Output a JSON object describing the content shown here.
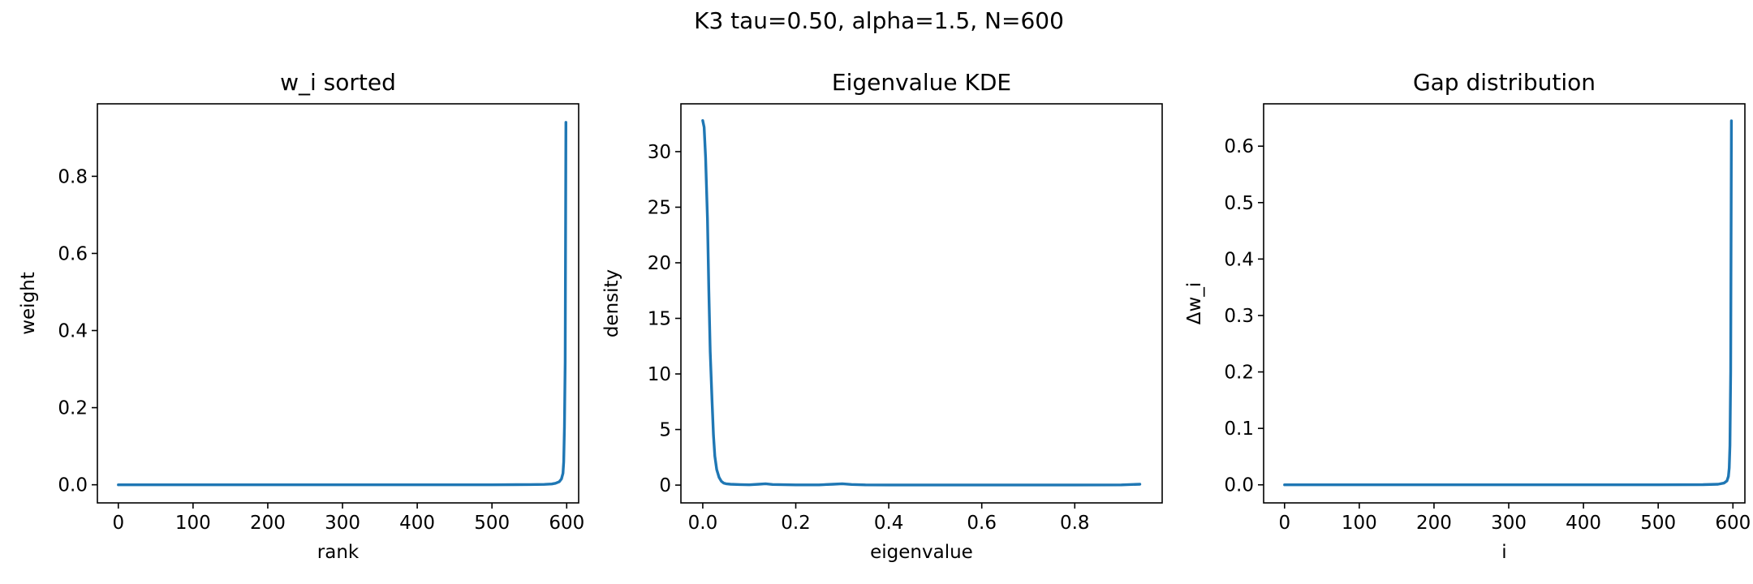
{
  "figure": {
    "title": "K3 tau=0.50, alpha=1.5, N=600"
  },
  "colors": {
    "background": "#ffffff",
    "series": "#1f77b4",
    "axes": "#000000"
  },
  "chart_data": [
    {
      "type": "line",
      "title": "w_i sorted",
      "xlabel": "rank",
      "ylabel": "weight",
      "xlim": [
        -28,
        616
      ],
      "ylim": [
        -0.047,
        0.988
      ],
      "xticks": [
        0,
        100,
        200,
        300,
        400,
        500,
        600
      ],
      "xtick_labels": [
        "0",
        "100",
        "200",
        "300",
        "400",
        "500",
        "600"
      ],
      "yticks": [
        0.0,
        0.2,
        0.4,
        0.6,
        0.8
      ],
      "ytick_labels": [
        "0.0",
        "0.2",
        "0.4",
        "0.6",
        "0.8"
      ],
      "grid": false,
      "series": [
        {
          "x": [
            0,
            100,
            200,
            300,
            400,
            500,
            550,
            570,
            580,
            585,
            590,
            593,
            595,
            596,
            597,
            598,
            599
          ],
          "y": [
            0.0,
            0.0,
            0.0,
            0.0,
            0.0,
            0.0,
            0.0005,
            0.001,
            0.002,
            0.004,
            0.008,
            0.015,
            0.03,
            0.06,
            0.15,
            0.32,
            0.94
          ]
        }
      ]
    },
    {
      "type": "line",
      "title": "Eigenvalue KDE",
      "xlabel": "eigenvalue",
      "ylabel": "density",
      "xlim": [
        -0.047,
        0.988
      ],
      "ylim": [
        -1.6,
        34.3
      ],
      "xticks": [
        0.0,
        0.2,
        0.4,
        0.6,
        0.8
      ],
      "xtick_labels": [
        "0.0",
        "0.2",
        "0.4",
        "0.6",
        "0.8"
      ],
      "yticks": [
        0,
        5,
        10,
        15,
        20,
        25,
        30
      ],
      "ytick_labels": [
        "0",
        "5",
        "10",
        "15",
        "20",
        "25",
        "30"
      ],
      "grid": false,
      "series": [
        {
          "x": [
            0.0,
            0.003,
            0.006,
            0.01,
            0.013,
            0.016,
            0.02,
            0.023,
            0.026,
            0.03,
            0.035,
            0.04,
            0.045,
            0.05,
            0.06,
            0.08,
            0.1,
            0.12,
            0.135,
            0.15,
            0.2,
            0.25,
            0.28,
            0.3,
            0.32,
            0.35,
            0.4,
            0.5,
            0.6,
            0.7,
            0.8,
            0.9,
            0.94
          ],
          "y": [
            32.8,
            32.2,
            29.5,
            24.0,
            17.5,
            12.0,
            7.5,
            4.5,
            2.6,
            1.4,
            0.7,
            0.35,
            0.18,
            0.12,
            0.08,
            0.05,
            0.03,
            0.08,
            0.12,
            0.06,
            0.02,
            0.02,
            0.08,
            0.12,
            0.06,
            0.02,
            0.01,
            0.01,
            0.01,
            0.01,
            0.01,
            0.02,
            0.08
          ]
        }
      ]
    },
    {
      "type": "line",
      "title": "Gap distribution",
      "xlabel": "i",
      "ylabel": "Δw_i",
      "xlim": [
        -28,
        616
      ],
      "ylim": [
        -0.032,
        0.675
      ],
      "xticks": [
        0,
        100,
        200,
        300,
        400,
        500,
        600
      ],
      "xtick_labels": [
        "0",
        "100",
        "200",
        "300",
        "400",
        "500",
        "600"
      ],
      "yticks": [
        0.0,
        0.1,
        0.2,
        0.3,
        0.4,
        0.5,
        0.6
      ],
      "ytick_labels": [
        "0.0",
        "0.1",
        "0.2",
        "0.3",
        "0.4",
        "0.5",
        "0.6"
      ],
      "grid": false,
      "series": [
        {
          "x": [
            0,
            100,
            200,
            300,
            400,
            500,
            560,
            580,
            588,
            592,
            594,
            595,
            596,
            597,
            598
          ],
          "y": [
            0.0,
            0.0,
            0.0,
            0.0,
            0.0,
            0.0,
            0.0003,
            0.001,
            0.003,
            0.007,
            0.015,
            0.03,
            0.07,
            0.2,
            0.645
          ]
        }
      ]
    }
  ]
}
